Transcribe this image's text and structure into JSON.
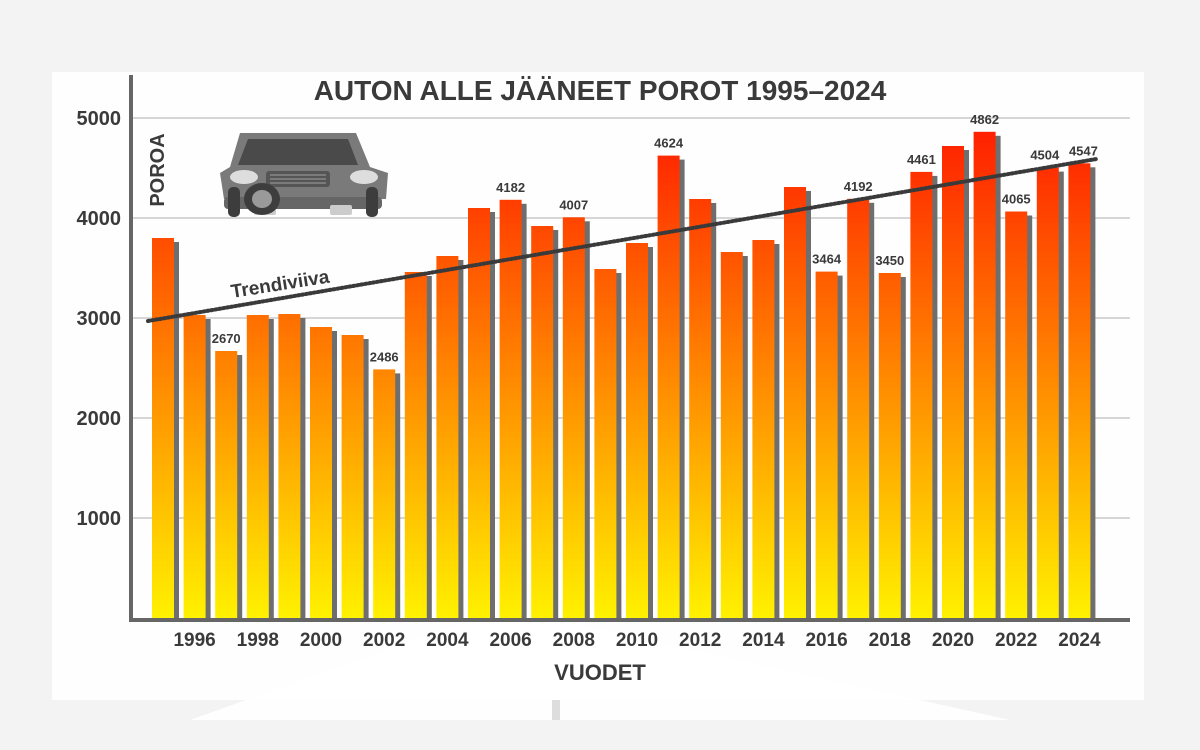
{
  "chart_data": {
    "type": "bar",
    "title": "AUTON ALLE JÄÄNEET POROT 1995–2024",
    "xlabel": "VUODET",
    "ylabel": "POROA",
    "ylim": [
      0,
      5000
    ],
    "yticks": [
      1000,
      2000,
      3000,
      4000,
      5000
    ],
    "xtick_labels": [
      "1996",
      "1998",
      "2000",
      "2002",
      "2004",
      "2006",
      "2008",
      "2010",
      "2012",
      "2014",
      "2016",
      "2018",
      "2020",
      "2022",
      "2024"
    ],
    "categories": [
      "1995",
      "1996",
      "1997",
      "1998",
      "1999",
      "2000",
      "2001",
      "2002",
      "2003",
      "2004",
      "2005",
      "2006",
      "2007",
      "2008",
      "2009",
      "2010",
      "2011",
      "2012",
      "2013",
      "2014",
      "2015",
      "2016",
      "2017",
      "2018",
      "2019",
      "2020",
      "2021",
      "2022",
      "2023",
      "2024"
    ],
    "values": [
      3800,
      3030,
      2670,
      3030,
      3040,
      2910,
      2830,
      2486,
      3460,
      3620,
      4100,
      4182,
      3920,
      4007,
      3490,
      3750,
      4624,
      4190,
      3660,
      3780,
      4310,
      3464,
      4192,
      3450,
      4461,
      4720,
      4862,
      4065,
      4504,
      4547
    ],
    "data_labels": [
      {
        "category": "1997",
        "text": "2670"
      },
      {
        "category": "2002",
        "text": "2486"
      },
      {
        "category": "2006",
        "text": "4182"
      },
      {
        "category": "2008",
        "text": "4007"
      },
      {
        "category": "2011",
        "text": "4624"
      },
      {
        "category": "2016",
        "text": "3464"
      },
      {
        "category": "2017",
        "text": "4192"
      },
      {
        "category": "2018",
        "text": "3450"
      },
      {
        "category": "2019",
        "text": "4461"
      },
      {
        "category": "2021",
        "text": "4862"
      },
      {
        "category": "2022",
        "text": "4065"
      },
      {
        "category": "2023",
        "text": "4504"
      },
      {
        "category": "2024",
        "text": "4547"
      }
    ],
    "trendline": {
      "label": "Trendiviiva",
      "start": {
        "x": "1995",
        "y": 2970
      },
      "end": {
        "x": "2024",
        "y": 4590
      }
    },
    "grid": true,
    "legend": "none",
    "colors": {
      "bar_top": "#ff1a00",
      "bar_mid": "#ff7a00",
      "bar_bottom": "#fff200",
      "shadow": "#6e6e6e",
      "axis": "#666666",
      "text": "#3a3a3a",
      "trend": "#3a3a3a"
    }
  },
  "decor": {
    "icon": "car-icon"
  }
}
